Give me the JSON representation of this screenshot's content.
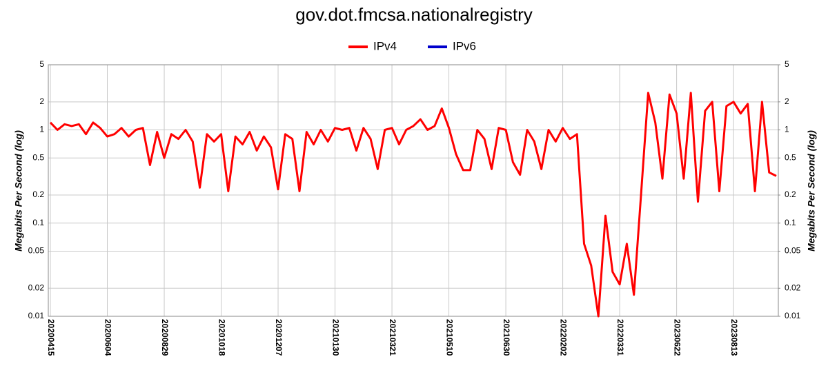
{
  "chart_data": {
    "type": "line",
    "title": "gov.dot.fmcsa.nationalregistry",
    "y_label": "Megabits Per Second (log)",
    "y2_label": "Megabits Per Second (log)",
    "log_y": true,
    "grid": true,
    "legend": "top",
    "categories": [
      "20200415",
      null,
      null,
      null,
      null,
      null,
      null,
      null,
      "20200604",
      null,
      null,
      null,
      null,
      null,
      null,
      null,
      "20200829",
      null,
      null,
      null,
      null,
      null,
      null,
      null,
      "20201018",
      null,
      null,
      null,
      null,
      null,
      null,
      null,
      "20201207",
      null,
      null,
      null,
      null,
      null,
      null,
      null,
      "20210130",
      null,
      null,
      null,
      null,
      null,
      null,
      null,
      "20210321",
      null,
      null,
      null,
      null,
      null,
      null,
      null,
      "20210510",
      null,
      null,
      null,
      null,
      null,
      null,
      null,
      "20210630",
      null,
      null,
      null,
      null,
      null,
      null,
      null,
      "20220202",
      null,
      null,
      null,
      null,
      null,
      null,
      null,
      "20220331",
      null,
      null,
      null,
      null,
      null,
      null,
      null,
      "20230622",
      null,
      null,
      null,
      null,
      null,
      null,
      null,
      "20230813",
      null,
      null,
      null,
      null,
      null,
      null
    ],
    "series": [
      {
        "name": "IPv4",
        "color": "#ff0000",
        "values": [
          1.2,
          1.0,
          1.15,
          1.1,
          1.15,
          0.9,
          1.2,
          1.05,
          0.85,
          0.9,
          1.05,
          0.85,
          1.0,
          1.05,
          0.42,
          0.95,
          0.5,
          0.9,
          0.8,
          1.0,
          0.75,
          0.24,
          0.9,
          0.75,
          0.9,
          0.22,
          0.85,
          0.7,
          0.95,
          0.6,
          0.85,
          0.65,
          0.23,
          0.9,
          0.8,
          0.22,
          0.95,
          0.7,
          1.0,
          0.75,
          1.05,
          1.0,
          1.05,
          0.6,
          1.05,
          0.8,
          0.38,
          1.0,
          1.05,
          0.7,
          1.0,
          1.1,
          1.3,
          1.0,
          1.1,
          1.7,
          1.05,
          0.55,
          0.37,
          0.37,
          1.0,
          0.8,
          0.38,
          1.05,
          1.0,
          0.45,
          0.33,
          1.0,
          0.75,
          0.38,
          1.0,
          0.75,
          1.05,
          0.8,
          0.9,
          0.06,
          0.035,
          0.01,
          0.12,
          0.03,
          0.022,
          0.06,
          0.017,
          0.2,
          2.5,
          1.2,
          0.3,
          2.4,
          1.5,
          0.3,
          2.5,
          0.17,
          1.6,
          2.0,
          0.22,
          1.8,
          2.0,
          1.5,
          1.9,
          0.22,
          2.0,
          0.35,
          0.32
        ]
      },
      {
        "name": "IPv6",
        "color": "#0000cc",
        "values": [
          null,
          null,
          null,
          null,
          null,
          null,
          null,
          null,
          null,
          null,
          null,
          null,
          null,
          null,
          null,
          null,
          null,
          null,
          null,
          null,
          null,
          null,
          null,
          null,
          null,
          null,
          null,
          null,
          null,
          null,
          null,
          null,
          null,
          null,
          null,
          null,
          null,
          null,
          null,
          null,
          null,
          null,
          null,
          null,
          null,
          null,
          null,
          null,
          null,
          null,
          null,
          null,
          null,
          null,
          null,
          null,
          null,
          null,
          null,
          null,
          null,
          null,
          null,
          null,
          null,
          null,
          null,
          null,
          null,
          null,
          null,
          null,
          null,
          null,
          null,
          null,
          null,
          null,
          null,
          null,
          null,
          null,
          null,
          null,
          null,
          null,
          null,
          null,
          null,
          null,
          null,
          null,
          null,
          null,
          null,
          null,
          null,
          null,
          null,
          null,
          null,
          null,
          null
        ]
      }
    ],
    "ylim": [
      0.01,
      5
    ],
    "yticks": [
      0.01,
      0.02,
      0.05,
      0.1,
      0.2,
      0.5,
      1,
      2,
      5
    ],
    "y2lim": [
      0.01,
      5
    ],
    "y2ticks": [
      0.01,
      0.02,
      0.05,
      0.1,
      0.2,
      0.5,
      1,
      2,
      5
    ]
  }
}
